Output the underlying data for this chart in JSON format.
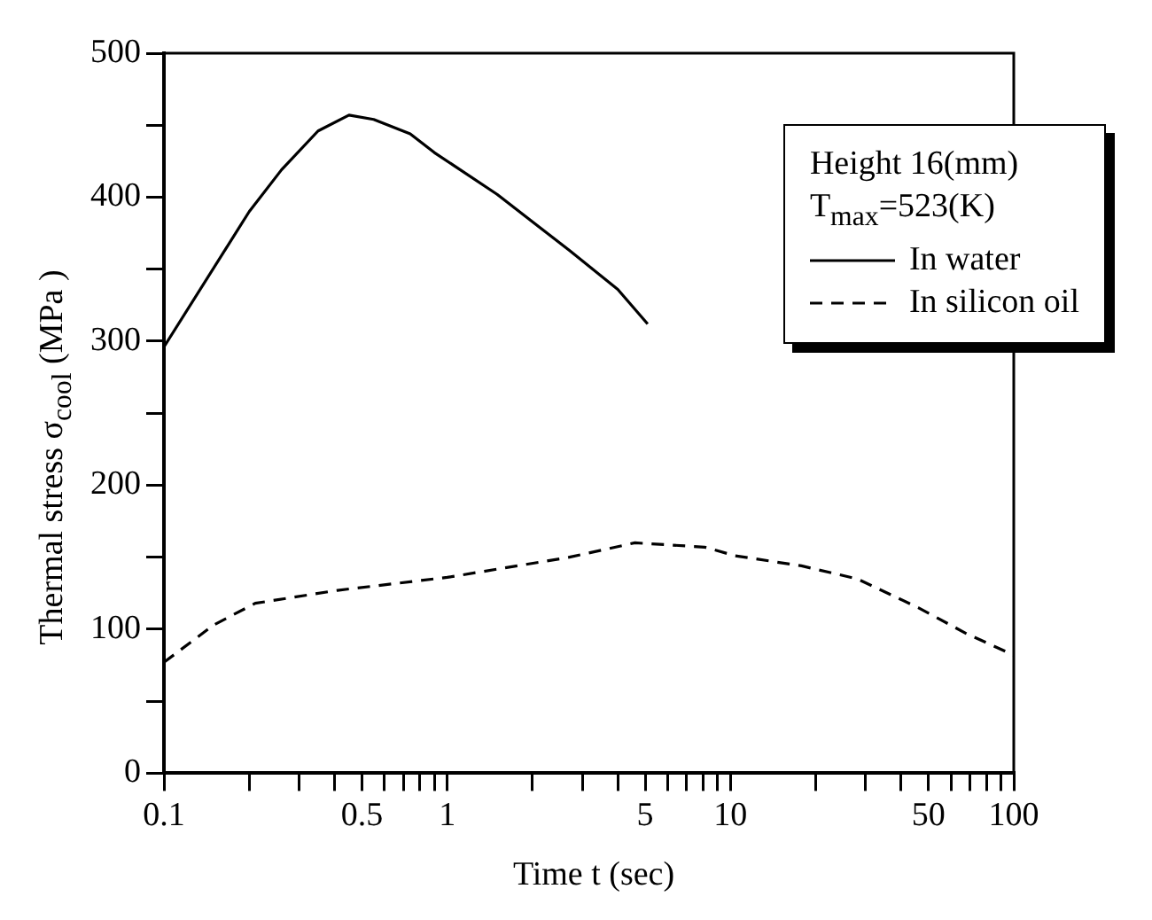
{
  "chart_data": {
    "type": "line",
    "xlabel": "Time t (sec)",
    "ylabel": "Thermal stress σ$_{cool}$ (MPa )",
    "annotations": [
      "Height 16(mm)",
      "T$_{max}$=523(K)"
    ],
    "log": "x",
    "legend": "top right",
    "grid": false,
    "marker": "none",
    "xlim": [
      0.1,
      100
    ],
    "ylim": [
      0,
      500
    ],
    "xticks": [
      0.1,
      {
        "value": 0.2,
        "label": null
      },
      {
        "value": 0.3,
        "label": null
      },
      {
        "value": 0.4,
        "label": null
      },
      0.5,
      {
        "value": 0.6,
        "label": null
      },
      {
        "value": 0.7,
        "label": null
      },
      {
        "value": 0.8,
        "label": null
      },
      {
        "value": 0.9,
        "label": null
      },
      1,
      {
        "value": 2,
        "label": null
      },
      {
        "value": 3,
        "label": null
      },
      {
        "value": 4,
        "label": null
      },
      5,
      {
        "value": 6,
        "label": null
      },
      {
        "value": 7,
        "label": null
      },
      {
        "value": 8,
        "label": null
      },
      {
        "value": 9,
        "label": null
      },
      10,
      {
        "value": 20,
        "label": null
      },
      {
        "value": 30,
        "label": null
      },
      {
        "value": 40,
        "label": null
      },
      50,
      {
        "value": 60,
        "label": null
      },
      {
        "value": 70,
        "label": null
      },
      {
        "value": 80,
        "label": null
      },
      {
        "value": 90,
        "label": null
      },
      100
    ],
    "yticks": [
      0,
      {
        "value": 50,
        "label": null
      },
      100,
      {
        "value": 150,
        "label": null
      },
      200,
      {
        "value": 250,
        "label": null
      },
      300,
      {
        "value": 350,
        "label": null
      },
      400,
      {
        "value": 450,
        "label": null
      },
      500
    ],
    "series": [
      {
        "name": "In water",
        "color": "#000000",
        "line_style": "solid",
        "x": [
          0.1,
          0.2,
          0.26,
          0.35,
          0.45,
          0.55,
          0.74,
          0.9,
          1.5,
          2.7,
          4,
          5.1
        ],
        "values": [
          296,
          390,
          419,
          446,
          457,
          454,
          444,
          431,
          402,
          363,
          336,
          312
        ]
      },
      {
        "name": "In silicon oil",
        "color": "#000000",
        "line_style": "dashed",
        "x": [
          0.1,
          0.15,
          0.21,
          0.41,
          1,
          2.7,
          4.6,
          8.1,
          10.4,
          17.8,
          28,
          46,
          68,
          100
        ],
        "values": [
          77,
          103,
          118,
          127,
          136,
          150,
          160,
          157,
          151,
          144,
          135,
          115,
          97,
          82
        ]
      }
    ]
  }
}
